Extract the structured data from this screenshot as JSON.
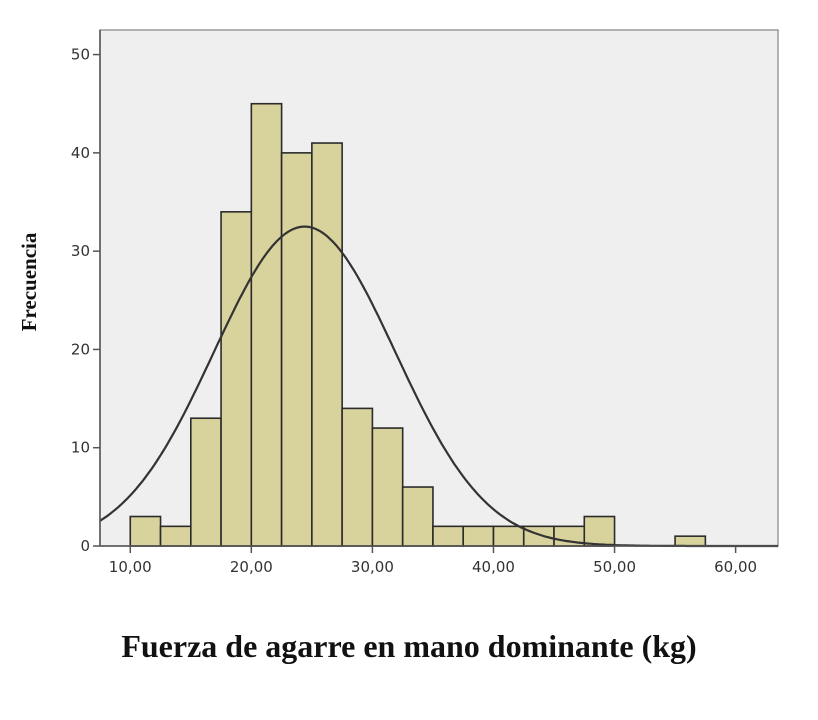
{
  "chart_data": {
    "type": "bar",
    "subtype": "histogram with normal curve",
    "xlabel": "Fuerza de agarre en mano dominante (kg)",
    "ylabel": "Frecuencia",
    "xlim": [
      7.5,
      63.5
    ],
    "ylim": [
      0,
      52.5
    ],
    "x_ticks": [
      10,
      20,
      30,
      40,
      50,
      60
    ],
    "x_tick_labels": [
      "10,00",
      "20,00",
      "30,00",
      "40,00",
      "50,00",
      "60,00"
    ],
    "y_ticks": [
      0,
      10,
      20,
      30,
      40,
      50
    ],
    "y_tick_labels": [
      "0",
      "10",
      "20",
      "30",
      "40",
      "50"
    ],
    "bin_width": 2.5,
    "bins": [
      {
        "start": 10.0,
        "end": 12.5,
        "value": 3
      },
      {
        "start": 12.5,
        "end": 15.0,
        "value": 2
      },
      {
        "start": 15.0,
        "end": 17.5,
        "value": 13
      },
      {
        "start": 17.5,
        "end": 20.0,
        "value": 34
      },
      {
        "start": 20.0,
        "end": 22.5,
        "value": 45
      },
      {
        "start": 22.5,
        "end": 25.0,
        "value": 40
      },
      {
        "start": 25.0,
        "end": 27.5,
        "value": 41
      },
      {
        "start": 27.5,
        "end": 30.0,
        "value": 14
      },
      {
        "start": 30.0,
        "end": 32.5,
        "value": 12
      },
      {
        "start": 32.5,
        "end": 35.0,
        "value": 6
      },
      {
        "start": 35.0,
        "end": 37.5,
        "value": 2
      },
      {
        "start": 37.5,
        "end": 40.0,
        "value": 2
      },
      {
        "start": 40.0,
        "end": 42.5,
        "value": 2
      },
      {
        "start": 42.5,
        "end": 45.0,
        "value": 2
      },
      {
        "start": 45.0,
        "end": 47.5,
        "value": 2
      },
      {
        "start": 47.5,
        "end": 50.0,
        "value": 3
      },
      {
        "start": 55.0,
        "end": 57.5,
        "value": 1
      }
    ],
    "normal_curve": {
      "mean": 24.4,
      "sd": 7.5,
      "peak": 32.5
    },
    "grid": false,
    "colors": {
      "bar_fill": "#d8d29c",
      "bar_stroke": "#2b2b2b",
      "plot_background": "#efefef",
      "curve": "#333333"
    }
  }
}
